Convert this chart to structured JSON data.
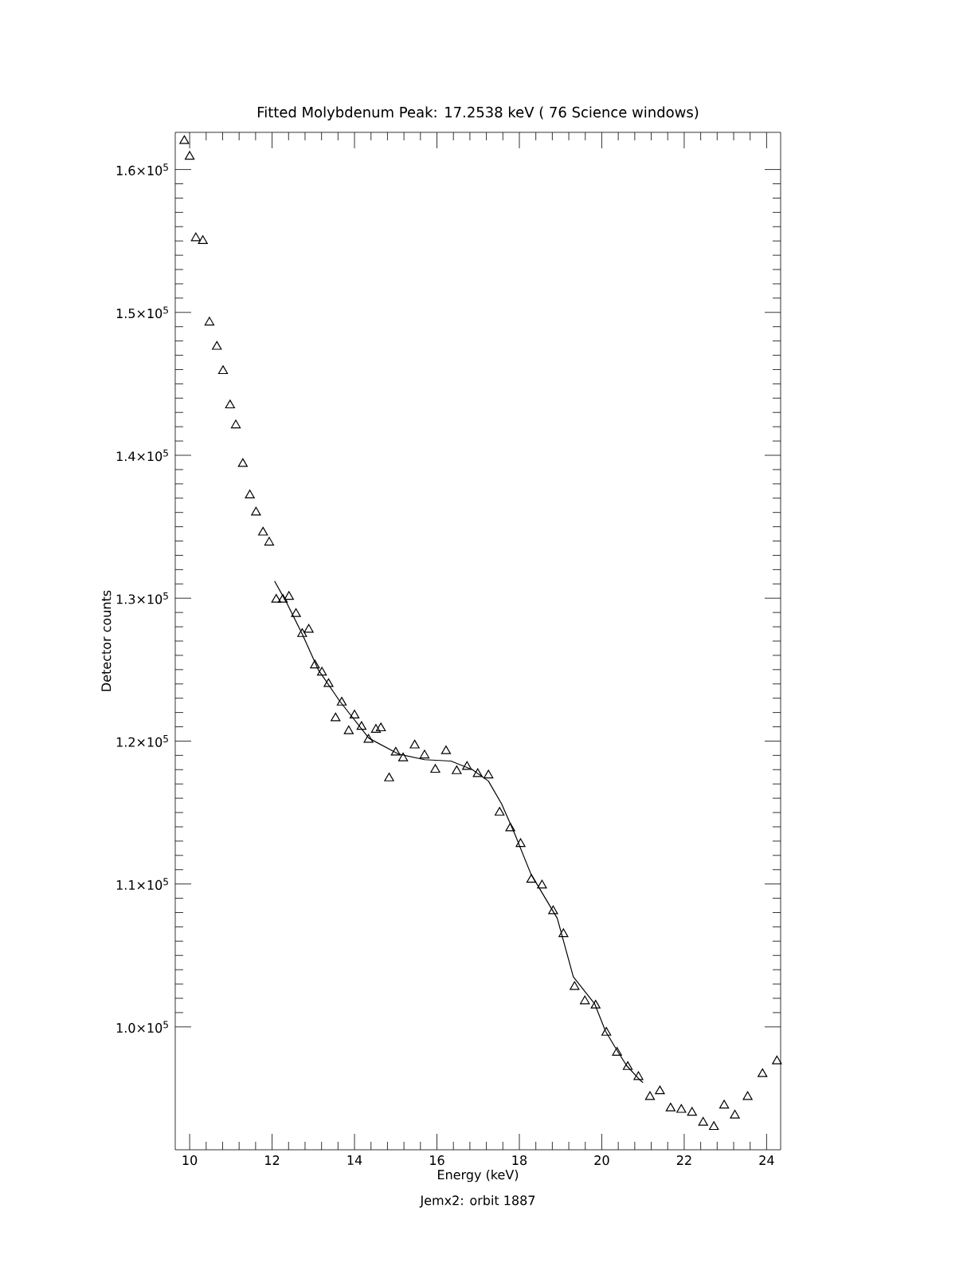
{
  "chart_data": {
    "type": "scatter",
    "title": "Fitted Molybdenum Peak:      17.2538 keV (      76 Science windows)",
    "xlabel": "Energy (keV)",
    "ylabel": "Detector counts",
    "annotations": [
      "Jemx2: orbit 1887"
    ],
    "xlim": [
      9.65,
      24.34
    ],
    "ylim": [
      91400,
      162600
    ],
    "xticks": [
      10,
      12,
      14,
      16,
      18,
      20,
      22,
      24
    ],
    "yticks": [
      {
        "value": 100000,
        "label": "1.0×10$^{5}$"
      },
      {
        "value": 110000,
        "label": "1.1×10$^{5}$"
      },
      {
        "value": 120000,
        "label": "1.2×10$^{5}$"
      },
      {
        "value": 130000,
        "label": "1.3×10$^{5}$"
      },
      {
        "value": 140000,
        "label": "1.4×10$^{5}$"
      },
      {
        "value": 150000,
        "label": "1.5×10$^{5}$"
      },
      {
        "value": 160000,
        "label": "1.6×10$^{5}$"
      }
    ],
    "grid": false,
    "series": [
      {
        "color": "#000000",
        "marker": "triangle",
        "x": [
          9.87,
          10.0,
          10.15,
          10.32,
          10.48,
          10.66,
          10.81,
          10.98,
          11.12,
          11.29,
          11.46,
          11.61,
          11.78,
          11.93,
          12.1,
          12.26,
          12.41,
          12.58,
          12.73,
          12.89,
          13.04,
          13.21,
          13.37,
          13.54,
          13.69,
          13.86,
          14.0,
          14.17,
          14.34,
          14.52,
          14.64,
          14.84,
          15.0,
          15.18,
          15.46,
          15.7,
          15.96,
          16.22,
          16.48,
          16.73,
          16.99,
          17.25,
          17.52,
          17.78,
          18.03,
          18.29,
          18.55,
          18.82,
          19.07,
          19.34,
          19.59,
          19.85,
          20.11,
          20.37,
          20.63,
          20.89,
          21.17,
          21.41,
          21.67,
          21.93,
          22.19,
          22.46,
          22.72,
          22.97,
          23.23,
          23.54,
          23.9,
          24.25
        ],
        "values": [
          162000,
          160900,
          155200,
          155000,
          149300,
          147600,
          145900,
          143500,
          142100,
          139400,
          137200,
          136000,
          134600,
          133900,
          129900,
          129900,
          130100,
          128900,
          127500,
          127800,
          125300,
          124800,
          124000,
          121600,
          122700,
          120700,
          121800,
          121000,
          120100,
          120800,
          120900,
          117400,
          119200,
          118800,
          119700,
          119000,
          118000,
          119300,
          117900,
          118200,
          117700,
          117600,
          115000,
          113900,
          112800,
          110300,
          109900,
          108100,
          106500,
          102800,
          101800,
          101500,
          99600,
          98200,
          97200,
          96500,
          95100,
          95500,
          94300,
          94200,
          94000,
          93300,
          93000,
          94500,
          93800,
          95100,
          96700,
          97600
        ]
      },
      {
        "type": "line",
        "color": "#000000",
        "marker": "none",
        "line_style": "solid",
        "x": [
          12.06,
          12.35,
          12.73,
          13.12,
          13.64,
          14.35,
          15.06,
          15.7,
          16.34,
          16.86,
          17.25,
          17.57,
          17.89,
          18.28,
          18.92,
          19.31,
          19.83,
          20.09,
          20.34,
          20.6,
          20.92,
          21.0
        ],
        "values": [
          131200,
          129700,
          127500,
          125000,
          122800,
          120200,
          119100,
          118700,
          118600,
          118000,
          117200,
          115600,
          113500,
          110700,
          107600,
          103500,
          101600,
          99700,
          98500,
          97300,
          96300,
          96100
        ]
      }
    ]
  }
}
